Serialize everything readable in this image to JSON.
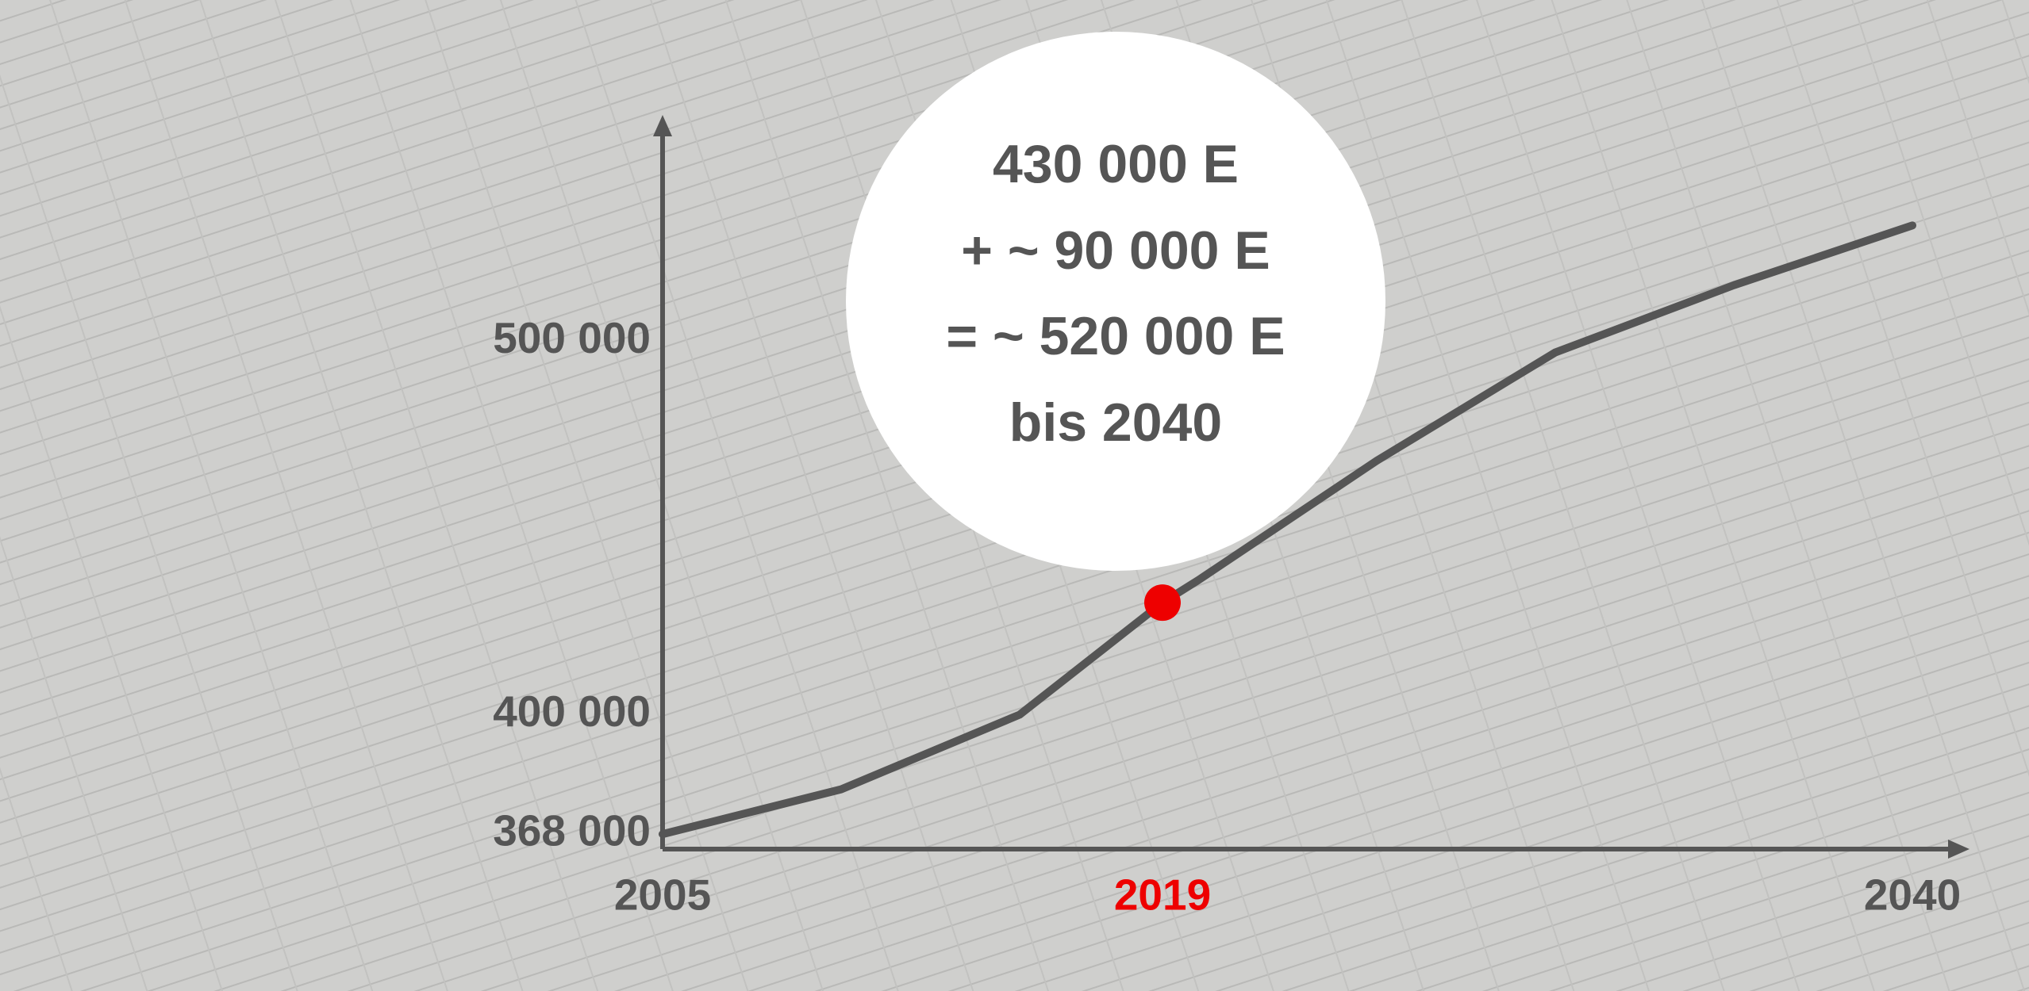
{
  "chart_data": {
    "type": "line",
    "x": [
      2005,
      2010,
      2015,
      2019,
      2020,
      2025,
      2030,
      2035,
      2040
    ],
    "series": [
      {
        "name": null,
        "color": "#555555",
        "values": [
          368000,
          380000,
          400000,
          430000,
          436000,
          468000,
          497000,
          515000,
          531000
        ]
      }
    ],
    "xlim": [
      2005,
      2040
    ],
    "xticks": [
      2005,
      2019,
      2040
    ],
    "highlight_tick": 2019,
    "highlight_point": {
      "x": 2019,
      "value": 430000,
      "color": "#ee0000"
    },
    "ylim": [
      364000,
      540000
    ],
    "yticks": [
      {
        "value": 368000,
        "label": "368 000"
      },
      {
        "value": 400000,
        "label": "400 000"
      },
      {
        "value": 500000,
        "label": "500 000"
      }
    ],
    "annotations": [
      "430 000 E",
      "+ ~ 90 000 E",
      "= ~ 520 000 E",
      "bis 2040"
    ]
  }
}
